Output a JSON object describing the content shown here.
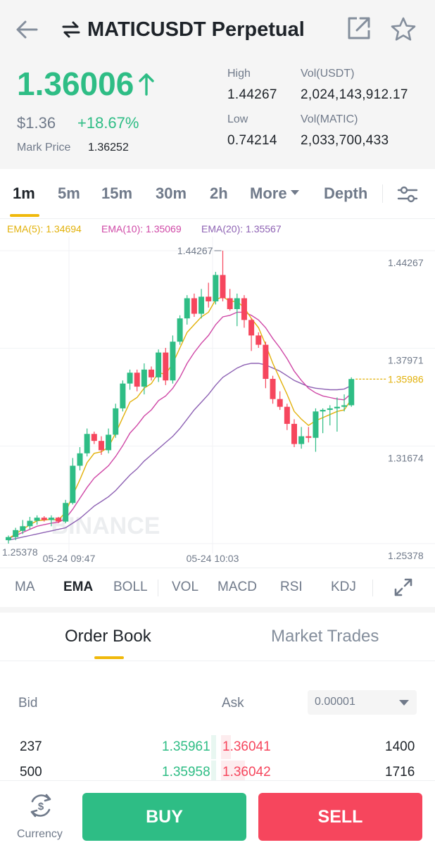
{
  "header": {
    "title": "MATICUSDT Perpetual",
    "back_icon": "arrow-left-icon",
    "swap_icon": "swap-arrows-icon",
    "share_icon": "external-link-icon",
    "favorite_icon": "star-outline-icon"
  },
  "ticker": {
    "last_price": "1.36006",
    "price_direction_icon": "arrow-up-icon",
    "usd_price": "$1.36",
    "change_pct": "+18.67%",
    "mark_price_label": "Mark Price",
    "mark_price": "1.36252",
    "high_label": "High",
    "high": "1.44267",
    "low_label": "Low",
    "low": "0.74214",
    "vol_usdt_label": "Vol(USDT)",
    "vol_usdt": "2,024,143,912.17",
    "vol_matic_label": "Vol(MATIC)",
    "vol_matic": "2,033,700,433"
  },
  "intervals": {
    "tabs": [
      "1m",
      "5m",
      "15m",
      "30m",
      "2h"
    ],
    "active": "1m",
    "more_label": "More",
    "depth_label": "Depth",
    "settings_icon": "sliders-icon"
  },
  "ema_legend": {
    "ema5": "EMA(5): 1.34694",
    "ema10": "EMA(10): 1.35069",
    "ema20": "EMA(20): 1.35567"
  },
  "chart_data": {
    "type": "candlestick",
    "watermark": "BINANCE",
    "y_ticks": [
      "1.44267",
      "1.37971",
      "1.31674",
      "1.25378"
    ],
    "ylim": [
      1.25378,
      1.44267
    ],
    "x_ticks": [
      "05-24 09:47",
      "05-24 10:03"
    ],
    "high_marker": "1.44267",
    "low_marker": "1.25378",
    "last_price_marker": "1.35986",
    "colors": {
      "up": "#2ebd85",
      "down": "#f6465d",
      "ema5": "#e2b10a",
      "ema10": "#cf47a6",
      "ema20": "#8d61b3"
    },
    "candles": [
      {
        "o": 1.256,
        "h": 1.259,
        "l": 1.2538,
        "c": 1.258
      },
      {
        "o": 1.258,
        "h": 1.264,
        "l": 1.256,
        "c": 1.2625
      },
      {
        "o": 1.262,
        "h": 1.269,
        "l": 1.26,
        "c": 1.265
      },
      {
        "o": 1.265,
        "h": 1.271,
        "l": 1.263,
        "c": 1.2685
      },
      {
        "o": 1.2685,
        "h": 1.272,
        "l": 1.266,
        "c": 1.2705
      },
      {
        "o": 1.2705,
        "h": 1.2715,
        "l": 1.268,
        "c": 1.269
      },
      {
        "o": 1.269,
        "h": 1.272,
        "l": 1.265,
        "c": 1.2705
      },
      {
        "o": 1.2705,
        "h": 1.271,
        "l": 1.267,
        "c": 1.268
      },
      {
        "o": 1.268,
        "h": 1.282,
        "l": 1.267,
        "c": 1.28
      },
      {
        "o": 1.28,
        "h": 1.309,
        "l": 1.279,
        "c": 1.304
      },
      {
        "o": 1.304,
        "h": 1.316,
        "l": 1.301,
        "c": 1.312
      },
      {
        "o": 1.312,
        "h": 1.328,
        "l": 1.31,
        "c": 1.3245
      },
      {
        "o": 1.3245,
        "h": 1.326,
        "l": 1.318,
        "c": 1.32
      },
      {
        "o": 1.32,
        "h": 1.323,
        "l": 1.311,
        "c": 1.314
      },
      {
        "o": 1.314,
        "h": 1.328,
        "l": 1.312,
        "c": 1.324
      },
      {
        "o": 1.324,
        "h": 1.344,
        "l": 1.322,
        "c": 1.341
      },
      {
        "o": 1.341,
        "h": 1.359,
        "l": 1.339,
        "c": 1.357
      },
      {
        "o": 1.357,
        "h": 1.366,
        "l": 1.353,
        "c": 1.364
      },
      {
        "o": 1.364,
        "h": 1.366,
        "l": 1.352,
        "c": 1.355
      },
      {
        "o": 1.355,
        "h": 1.37,
        "l": 1.35,
        "c": 1.366
      },
      {
        "o": 1.366,
        "h": 1.368,
        "l": 1.359,
        "c": 1.361
      },
      {
        "o": 1.361,
        "h": 1.379,
        "l": 1.358,
        "c": 1.377
      },
      {
        "o": 1.377,
        "h": 1.38,
        "l": 1.356,
        "c": 1.359
      },
      {
        "o": 1.359,
        "h": 1.388,
        "l": 1.357,
        "c": 1.384
      },
      {
        "o": 1.384,
        "h": 1.401,
        "l": 1.382,
        "c": 1.399
      },
      {
        "o": 1.399,
        "h": 1.414,
        "l": 1.395,
        "c": 1.412
      },
      {
        "o": 1.412,
        "h": 1.415,
        "l": 1.4,
        "c": 1.402
      },
      {
        "o": 1.402,
        "h": 1.418,
        "l": 1.399,
        "c": 1.413
      },
      {
        "o": 1.413,
        "h": 1.422,
        "l": 1.406,
        "c": 1.41
      },
      {
        "o": 1.41,
        "h": 1.429,
        "l": 1.408,
        "c": 1.427
      },
      {
        "o": 1.427,
        "h": 1.4427,
        "l": 1.41,
        "c": 1.412
      },
      {
        "o": 1.412,
        "h": 1.418,
        "l": 1.404,
        "c": 1.405
      },
      {
        "o": 1.405,
        "h": 1.415,
        "l": 1.394,
        "c": 1.412
      },
      {
        "o": 1.412,
        "h": 1.414,
        "l": 1.393,
        "c": 1.398
      },
      {
        "o": 1.398,
        "h": 1.399,
        "l": 1.378,
        "c": 1.388
      },
      {
        "o": 1.388,
        "h": 1.39,
        "l": 1.38,
        "c": 1.382
      },
      {
        "o": 1.382,
        "h": 1.384,
        "l": 1.354,
        "c": 1.36
      },
      {
        "o": 1.36,
        "h": 1.362,
        "l": 1.344,
        "c": 1.347
      },
      {
        "o": 1.347,
        "h": 1.352,
        "l": 1.34,
        "c": 1.342
      },
      {
        "o": 1.342,
        "h": 1.344,
        "l": 1.327,
        "c": 1.331
      },
      {
        "o": 1.331,
        "h": 1.334,
        "l": 1.316,
        "c": 1.318
      },
      {
        "o": 1.318,
        "h": 1.329,
        "l": 1.315,
        "c": 1.323
      },
      {
        "o": 1.323,
        "h": 1.329,
        "l": 1.319,
        "c": 1.322
      },
      {
        "o": 1.322,
        "h": 1.341,
        "l": 1.313,
        "c": 1.339
      },
      {
        "o": 1.339,
        "h": 1.341,
        "l": 1.325,
        "c": 1.34
      },
      {
        "o": 1.34,
        "h": 1.343,
        "l": 1.33,
        "c": 1.341
      },
      {
        "o": 1.341,
        "h": 1.348,
        "l": 1.326,
        "c": 1.342
      },
      {
        "o": 1.342,
        "h": 1.35,
        "l": 1.339,
        "c": 1.343
      },
      {
        "o": 1.343,
        "h": 1.361,
        "l": 1.342,
        "c": 1.3599
      }
    ],
    "ema5": [
      1.257,
      1.26,
      1.263,
      1.266,
      1.2685,
      1.269,
      1.2695,
      1.269,
      1.274,
      1.285,
      1.295,
      1.306,
      1.312,
      1.313,
      1.316,
      1.325,
      1.335,
      1.345,
      1.348,
      1.354,
      1.357,
      1.364,
      1.363,
      1.37,
      1.38,
      1.39,
      1.395,
      1.4,
      1.403,
      1.411,
      1.413,
      1.41,
      1.41,
      1.406,
      1.399,
      1.393,
      1.382,
      1.37,
      1.36,
      1.35,
      1.339,
      1.334,
      1.33,
      1.333,
      1.335,
      1.337,
      1.339,
      1.34,
      1.3469
    ],
    "ema10": [
      1.257,
      1.259,
      1.261,
      1.263,
      1.265,
      1.266,
      1.267,
      1.2675,
      1.27,
      1.276,
      1.283,
      1.29,
      1.296,
      1.3,
      1.304,
      1.31,
      1.317,
      1.325,
      1.33,
      1.336,
      1.34,
      1.346,
      1.349,
      1.354,
      1.361,
      1.37,
      1.377,
      1.383,
      1.388,
      1.395,
      1.4,
      1.401,
      1.403,
      1.403,
      1.401,
      1.398,
      1.393,
      1.386,
      1.38,
      1.373,
      1.365,
      1.359,
      1.354,
      1.351,
      1.349,
      1.348,
      1.347,
      1.3465,
      1.3507
    ],
    "ema20": [
      1.256,
      1.257,
      1.258,
      1.259,
      1.26,
      1.261,
      1.262,
      1.263,
      1.264,
      1.267,
      1.27,
      1.274,
      1.278,
      1.281,
      1.284,
      1.288,
      1.293,
      1.298,
      1.302,
      1.307,
      1.311,
      1.315,
      1.319,
      1.323,
      1.328,
      1.334,
      1.34,
      1.345,
      1.35,
      1.356,
      1.361,
      1.364,
      1.367,
      1.369,
      1.37,
      1.37,
      1.369,
      1.367,
      1.365,
      1.362,
      1.359,
      1.357,
      1.355,
      1.354,
      1.3535,
      1.353,
      1.353,
      1.3535,
      1.3557
    ]
  },
  "indicators": {
    "main": [
      "MA",
      "EMA",
      "BOLL"
    ],
    "sub": [
      "VOL",
      "MACD",
      "RSI",
      "KDJ"
    ],
    "active": "EMA",
    "expand_icon": "expand-arrows-icon"
  },
  "order_book": {
    "tab_book": "Order Book",
    "tab_trades": "Market Trades",
    "bid_label": "Bid",
    "ask_label": "Ask",
    "precision": "0.00001",
    "rows": [
      {
        "bid_qty": "237",
        "bid_price": "1.35961",
        "ask_price": "1.36041",
        "ask_qty": "1400"
      },
      {
        "bid_qty": "500",
        "bid_price": "1.35958",
        "ask_price": "1.36042",
        "ask_qty": "1716"
      }
    ]
  },
  "actions": {
    "currency_label": "Currency",
    "currency_icon": "currency-exchange-icon",
    "buy_label": "BUY",
    "sell_label": "SELL"
  }
}
